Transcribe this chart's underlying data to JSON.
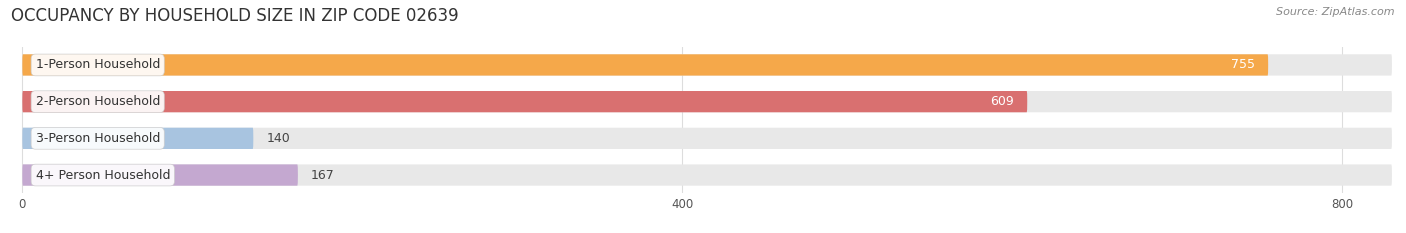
{
  "title": "OCCUPANCY BY HOUSEHOLD SIZE IN ZIP CODE 02639",
  "source": "Source: ZipAtlas.com",
  "categories": [
    "1-Person Household",
    "2-Person Household",
    "3-Person Household",
    "4+ Person Household"
  ],
  "values": [
    755,
    609,
    140,
    167
  ],
  "bar_colors": [
    "#F5A84A",
    "#D97070",
    "#A8C4E0",
    "#C4A8D0"
  ],
  "xlim": [
    -5,
    830
  ],
  "xticks": [
    0,
    400,
    800
  ],
  "figsize": [
    14.06,
    2.33
  ],
  "dpi": 100,
  "title_fontsize": 12,
  "bar_label_fontsize": 9,
  "category_label_fontsize": 9,
  "source_fontsize": 8,
  "background_color": "#ffffff",
  "bar_background_color": "#e8e8e8",
  "bar_height": 0.58,
  "bar_gap": 0.15
}
